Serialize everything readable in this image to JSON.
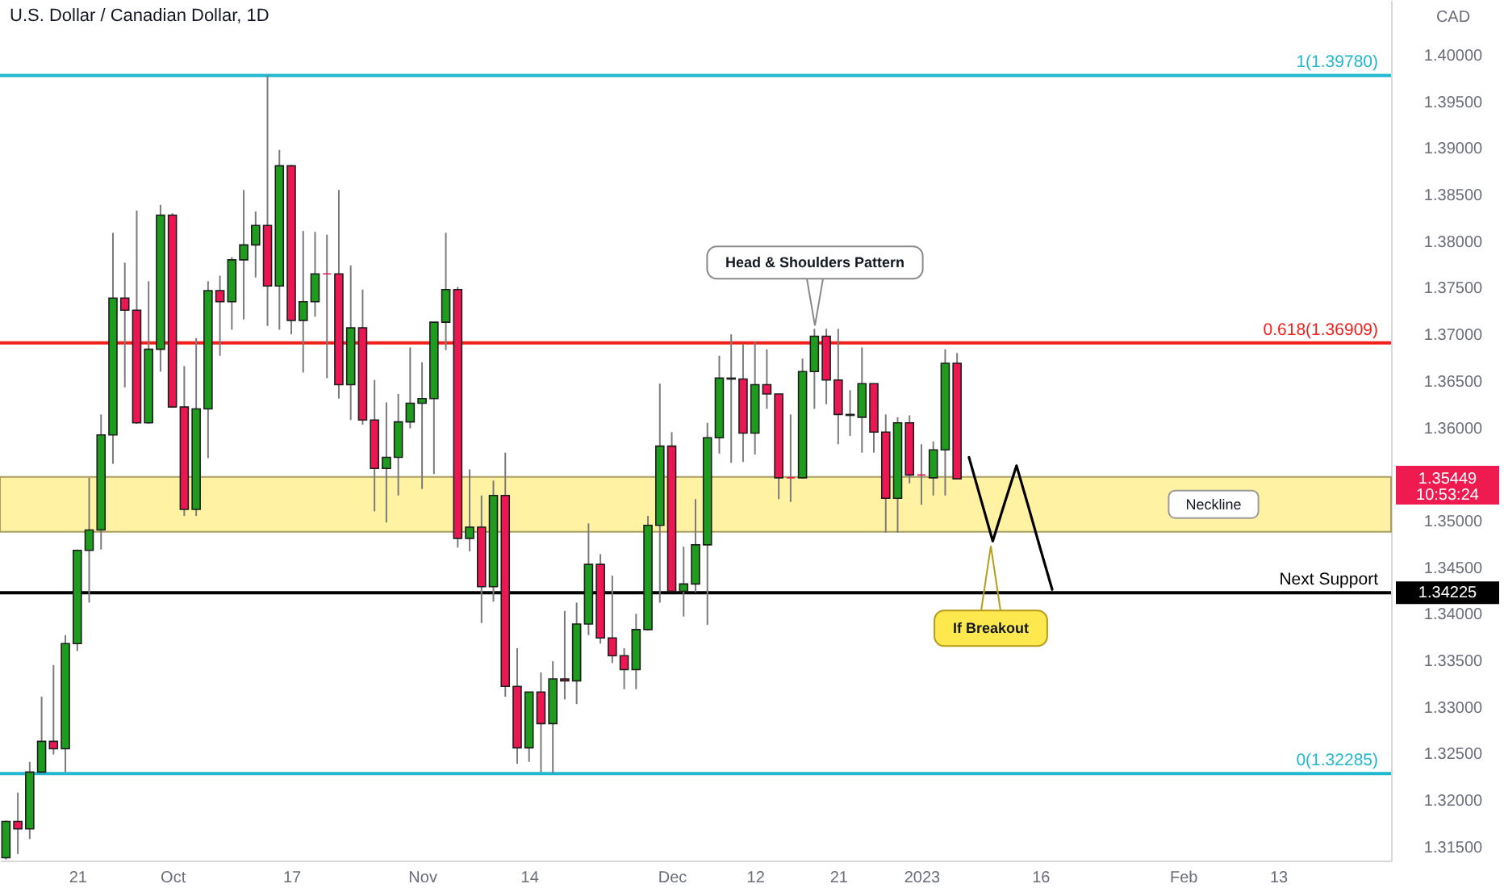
{
  "chart_data": {
    "type": "candlestick",
    "title": "U.S. Dollar / Canadian Dollar, 1D",
    "ylabel": "CAD",
    "categories": [
      null,
      null,
      null,
      null,
      null,
      null,
      "21",
      null,
      null,
      null,
      null,
      null,
      null,
      null,
      "Oct",
      null,
      null,
      null,
      null,
      null,
      null,
      null,
      null,
      null,
      "17",
      null,
      null,
      null,
      null,
      null,
      null,
      null,
      null,
      null,
      null,
      "Nov",
      null,
      null,
      null,
      null,
      null,
      null,
      null,
      null,
      "14",
      null,
      null,
      null,
      null,
      null,
      null,
      null,
      null,
      null,
      null,
      null,
      "Dec",
      null,
      null,
      null,
      null,
      null,
      null,
      "12",
      null,
      null,
      null,
      null,
      null,
      null,
      "21",
      null,
      null,
      null,
      null,
      null,
      null,
      "2023",
      null,
      null,
      null,
      null,
      null,
      null,
      null,
      null,
      null,
      "16",
      null,
      null,
      null,
      null,
      null,
      null,
      null,
      null,
      null,
      null,
      null,
      "Feb",
      null,
      null,
      null,
      null,
      null,
      null,
      null,
      "13",
      null,
      null,
      null,
      null,
      null,
      null,
      null,
      null,
      null
    ],
    "ylim": [
      1.3135,
      1.4059
    ],
    "yticks": [
      {
        "value": 1.315,
        "label": "1.31500"
      },
      {
        "value": 1.32,
        "label": "1.32000"
      },
      {
        "value": 1.325,
        "label": "1.32500"
      },
      {
        "value": 1.33,
        "label": "1.33000"
      },
      {
        "value": 1.335,
        "label": "1.33500"
      },
      {
        "value": 1.34,
        "label": "1.34000"
      },
      {
        "value": 1.345,
        "label": "1.34500"
      },
      {
        "value": 1.35,
        "label": "1.35000"
      },
      {
        "value": 1.36,
        "label": "1.36000"
      },
      {
        "value": 1.365,
        "label": "1.36500"
      },
      {
        "value": 1.37,
        "label": "1.37000"
      },
      {
        "value": 1.375,
        "label": "1.37500"
      },
      {
        "value": 1.38,
        "label": "1.38000"
      },
      {
        "value": 1.385,
        "label": "1.38500"
      },
      {
        "value": 1.39,
        "label": "1.39000"
      },
      {
        "value": 1.395,
        "label": "1.39500"
      },
      {
        "value": 1.4,
        "label": "1.40000"
      }
    ],
    "series": [
      {
        "ohlc": [
          [
            1.3138,
            1.3178,
            1.3136,
            1.3177
          ],
          [
            1.3177,
            1.3208,
            1.3142,
            1.3169
          ],
          [
            1.3169,
            1.3241,
            1.3158,
            1.323
          ],
          [
            1.323,
            1.3311,
            1.3229,
            1.3263
          ],
          [
            1.3263,
            1.3345,
            1.3249,
            1.3255
          ],
          [
            1.3255,
            1.3377,
            1.323,
            1.3368
          ],
          [
            1.3368,
            1.3469,
            1.336,
            1.3468
          ],
          [
            1.3468,
            1.3546,
            1.3412,
            1.349
          ],
          [
            1.349,
            1.3614,
            1.3469,
            1.3592
          ],
          [
            1.3592,
            1.3809,
            1.3561,
            1.3739
          ],
          [
            1.3739,
            1.3777,
            1.3643,
            1.3726
          ],
          [
            1.3726,
            1.3833,
            1.3604,
            1.3605
          ],
          [
            1.3605,
            1.3757,
            1.3604,
            1.3684
          ],
          [
            1.3684,
            1.3839,
            1.366,
            1.3828
          ],
          [
            1.3828,
            1.383,
            1.3621,
            1.3622
          ],
          [
            1.3622,
            1.3666,
            1.3505,
            1.3512
          ],
          [
            1.3512,
            1.3696,
            1.3505,
            1.362
          ],
          [
            1.362,
            1.3757,
            1.3567,
            1.3747
          ],
          [
            1.3747,
            1.3763,
            1.3677,
            1.3735
          ],
          [
            1.3735,
            1.3783,
            1.3705,
            1.378
          ],
          [
            1.378,
            1.3855,
            1.3716,
            1.3796
          ],
          [
            1.3796,
            1.3832,
            1.3761,
            1.3817
          ],
          [
            1.3817,
            1.3978,
            1.3709,
            1.3752
          ],
          [
            1.3752,
            1.3898,
            1.3705,
            1.3881
          ],
          [
            1.3881,
            1.3882,
            1.37,
            1.3715
          ],
          [
            1.3715,
            1.3811,
            1.3659,
            1.3735
          ],
          [
            1.3735,
            1.381,
            1.3719,
            1.3765
          ],
          [
            1.3765,
            1.3807,
            1.3653,
            1.3765
          ],
          [
            1.3765,
            1.3855,
            1.3631,
            1.3646
          ],
          [
            1.3646,
            1.3774,
            1.3608,
            1.3707
          ],
          [
            1.3707,
            1.3748,
            1.3603,
            1.3608
          ],
          [
            1.3608,
            1.3651,
            1.351,
            1.3556
          ],
          [
            1.3556,
            1.3627,
            1.3498,
            1.3568
          ],
          [
            1.3568,
            1.3636,
            1.3527,
            1.3606
          ],
          [
            1.3606,
            1.3686,
            1.3599,
            1.3626
          ],
          [
            1.3626,
            1.367,
            1.3534,
            1.3631
          ],
          [
            1.3631,
            1.3713,
            1.355,
            1.3713
          ],
          [
            1.3713,
            1.3809,
            1.3683,
            1.3748
          ],
          [
            1.3748,
            1.3751,
            1.3471,
            1.3481
          ],
          [
            1.3481,
            1.3555,
            1.3467,
            1.3493
          ],
          [
            1.3493,
            1.3527,
            1.339,
            1.3429
          ],
          [
            1.3429,
            1.3543,
            1.3413,
            1.3527
          ],
          [
            1.3527,
            1.3573,
            1.3311,
            1.3322
          ],
          [
            1.3322,
            1.3363,
            1.3239,
            1.3256
          ],
          [
            1.3256,
            1.3316,
            1.3241,
            1.3316
          ],
          [
            1.3316,
            1.3337,
            1.323,
            1.3282
          ],
          [
            1.3282,
            1.3349,
            1.32285,
            1.333
          ],
          [
            1.333,
            1.3403,
            1.3308,
            1.3328
          ],
          [
            1.3328,
            1.3412,
            1.3303,
            1.3389
          ],
          [
            1.3389,
            1.3497,
            1.3377,
            1.3453
          ],
          [
            1.3453,
            1.3464,
            1.3368,
            1.3374
          ],
          [
            1.3374,
            1.3441,
            1.3347,
            1.3355
          ],
          [
            1.3355,
            1.3363,
            1.3319,
            1.334
          ],
          [
            1.334,
            1.34,
            1.3319,
            1.3383
          ],
          [
            1.3383,
            1.3505,
            1.3382,
            1.3495
          ],
          [
            1.3495,
            1.3647,
            1.3412,
            1.358
          ],
          [
            1.358,
            1.3595,
            1.3424,
            1.3424
          ],
          [
            1.3424,
            1.3472,
            1.3397,
            1.3432
          ],
          [
            1.3432,
            1.3523,
            1.3423,
            1.3474
          ],
          [
            1.3474,
            1.3605,
            1.3388,
            1.3589
          ],
          [
            1.3589,
            1.3677,
            1.3572,
            1.3653
          ],
          [
            1.3653,
            1.37,
            1.3562,
            1.3652
          ],
          [
            1.3652,
            1.369,
            1.3563,
            1.3594
          ],
          [
            1.3594,
            1.3692,
            1.3571,
            1.3646
          ],
          [
            1.3646,
            1.3684,
            1.362,
            1.3636
          ],
          [
            1.3636,
            1.3636,
            1.3523,
            1.3546
          ],
          [
            1.3546,
            1.3614,
            1.352,
            1.3546
          ],
          [
            1.3546,
            1.3674,
            1.3545,
            1.366
          ],
          [
            1.366,
            1.3706,
            1.362,
            1.3698
          ],
          [
            1.3698,
            1.3706,
            1.3625,
            1.3651
          ],
          [
            1.3651,
            1.3706,
            1.3582,
            1.3614
          ],
          [
            1.3614,
            1.364,
            1.3591,
            1.3613
          ],
          [
            1.3611,
            1.3686,
            1.3573,
            1.3647
          ],
          [
            1.3647,
            1.3647,
            1.3573,
            1.3595
          ],
          [
            1.3595,
            1.3614,
            1.3487,
            1.3524
          ],
          [
            1.3524,
            1.3611,
            1.3487,
            1.3605
          ],
          [
            1.3605,
            1.3613,
            1.354,
            1.3549
          ],
          [
            1.3549,
            1.3582,
            1.3517,
            1.3549
          ],
          [
            1.3546,
            1.3585,
            1.3527,
            1.3576
          ],
          [
            1.3576,
            1.3684,
            1.3527,
            1.3669
          ],
          [
            1.3669,
            1.368,
            1.35449,
            1.35449
          ],
          null,
          null,
          null,
          null,
          null,
          null,
          null,
          null,
          null,
          null,
          null,
          null,
          null,
          null,
          null,
          null,
          null,
          null,
          null,
          null,
          null,
          null,
          null,
          null,
          null,
          null,
          null,
          null,
          null,
          null,
          null,
          null,
          null,
          null,
          null,
          null
        ],
        "colors": [
          "#1e9c1e",
          "#eb1752",
          "#1e9c1e",
          "#1e9c1e",
          "#eb1752",
          "#1e9c1e",
          "#1e9c1e",
          "#1e9c1e",
          "#1e9c1e",
          "#1e9c1e",
          "#eb1752",
          "#eb1752",
          "#1e9c1e",
          "#1e9c1e",
          "#eb1752",
          "#eb1752",
          "#1e9c1e",
          "#1e9c1e",
          "#eb1752",
          "#1e9c1e",
          "#1e9c1e",
          "#1e9c1e",
          "#eb1752",
          "#1e9c1e",
          "#eb1752",
          "#1e9c1e",
          "#1e9c1e",
          "#eb1752",
          "#eb1752",
          "#1e9c1e",
          "#eb1752",
          "#eb1752",
          "#1e9c1e",
          "#1e9c1e",
          "#1e9c1e",
          "#1e9c1e",
          "#1e9c1e",
          "#1e9c1e",
          "#eb1752",
          "#1e9c1e",
          "#eb1752",
          "#1e9c1e",
          "#eb1752",
          "#eb1752",
          "#1e9c1e",
          "#eb1752",
          "#1e9c1e",
          "#eb1752",
          "#1e9c1e",
          "#1e9c1e",
          "#eb1752",
          "#eb1752",
          "#eb1752",
          "#1e9c1e",
          "#1e9c1e",
          "#1e9c1e",
          "#eb1752",
          "#1e9c1e",
          "#1e9c1e",
          "#1e9c1e",
          "#1e9c1e",
          "#eb1752",
          "#eb1752",
          "#1e9c1e",
          "#eb1752",
          "#eb1752",
          "#eb1752",
          "#1e9c1e",
          "#1e9c1e",
          "#eb1752",
          "#eb1752",
          "#eb1752",
          "#1e9c1e",
          "#eb1752",
          "#eb1752",
          "#1e9c1e",
          "#eb1752",
          "#eb1752",
          "#1e9c1e",
          "#1e9c1e",
          "#eb1752",
          null,
          null,
          null,
          null,
          null,
          null,
          null,
          null,
          null,
          null,
          null,
          null,
          null,
          null,
          null,
          null,
          null,
          null,
          null,
          null,
          null,
          null,
          null,
          null,
          null,
          null,
          null,
          null,
          null,
          null,
          null,
          null,
          null,
          null,
          null,
          null
        ]
      },
      {
        "type": "line",
        "color": "#000000",
        "values": [
          null,
          null,
          null,
          null,
          null,
          null,
          null,
          null,
          null,
          null,
          null,
          null,
          null,
          null,
          null,
          null,
          null,
          null,
          null,
          null,
          null,
          null,
          null,
          null,
          null,
          null,
          null,
          null,
          null,
          null,
          null,
          null,
          null,
          null,
          null,
          null,
          null,
          null,
          null,
          null,
          null,
          null,
          null,
          null,
          null,
          null,
          null,
          null,
          null,
          null,
          null,
          null,
          null,
          null,
          null,
          null,
          null,
          null,
          null,
          null,
          null,
          null,
          null,
          null,
          null,
          null,
          null,
          null,
          null,
          null,
          null,
          null,
          null,
          null,
          null,
          null,
          null,
          null,
          null,
          null,
          null,
          1.3568,
          1.3523,
          1.3478,
          1.3519,
          1.3559,
          1.3515,
          1.347,
          1.3426,
          null,
          null,
          null,
          null,
          null,
          null,
          null,
          null,
          null,
          null,
          null,
          null,
          null,
          null,
          null,
          null,
          null,
          null,
          null,
          null,
          null,
          null,
          null,
          null,
          null,
          null,
          null,
          null
        ]
      }
    ],
    "ref_lines": [
      {
        "axis": "y",
        "value": 1.3978,
        "label": "1(1.39780)",
        "color": "#1fb8cf"
      },
      {
        "axis": "y",
        "value": 1.36909,
        "label": "0.618(1.36909)",
        "color": "#f0201c"
      },
      {
        "axis": "y",
        "value": 1.32285,
        "label": "0(1.32285)",
        "color": "#1fb8cf"
      },
      {
        "axis": "y",
        "value": 1.34225,
        "label": "Next Support",
        "color": "#000000"
      }
    ],
    "bands": [
      {
        "axis": "y",
        "from": 1.3488,
        "to": 1.3547,
        "label": "Neckline",
        "color": "#fff3a3"
      }
    ],
    "annotations": [
      {
        "text": "Head & Shoulders Pattern",
        "y": 1.3706
      },
      {
        "text": "If Breakout",
        "y": 1.3478
      },
      "1.35449",
      "10:53:24",
      "1.34225"
    ]
  }
}
